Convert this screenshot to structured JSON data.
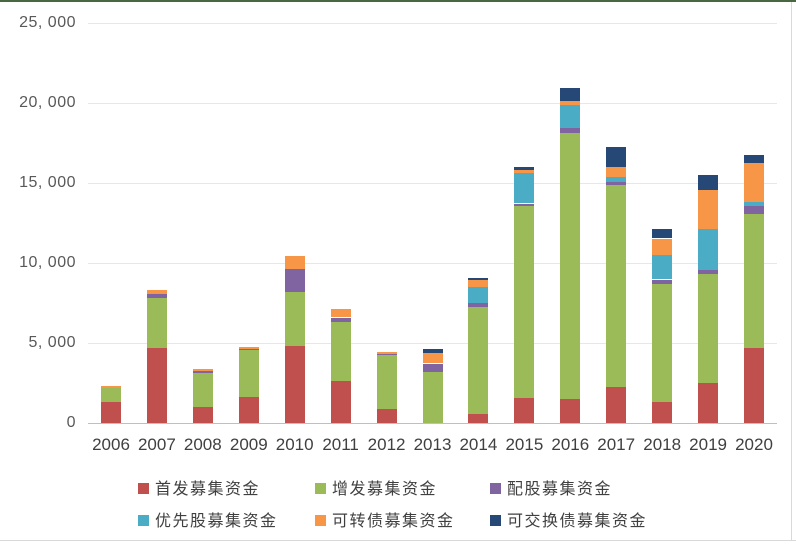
{
  "chart_data": {
    "type": "bar",
    "stacked": true,
    "title": "",
    "xlabel": "",
    "ylabel": "",
    "ylim": [
      0,
      25000
    ],
    "grid": true,
    "legend_position": "bottom",
    "categories": [
      "2006",
      "2007",
      "2008",
      "2009",
      "2010",
      "2011",
      "2012",
      "2013",
      "2014",
      "2015",
      "2016",
      "2017",
      "2018",
      "2019",
      "2020"
    ],
    "y_ticks": [
      {
        "label": "25, 000",
        "value": 25000
      },
      {
        "label": "20, 000",
        "value": 20000
      },
      {
        "label": "15, 000",
        "value": 15000
      },
      {
        "label": "10, 000",
        "value": 10000
      },
      {
        "label": "5, 000",
        "value": 5000
      },
      {
        "label": "0",
        "value": 0
      }
    ],
    "series": [
      {
        "key": "ipo",
        "name": "首发募集资金",
        "color": "#C0504D",
        "values": [
          1300,
          4680,
          1000,
          1650,
          4790,
          2600,
          900,
          0,
          550,
          1540,
          1500,
          2270,
          1330,
          2480,
          4670
        ]
      },
      {
        "key": "seo",
        "name": "增发募集资金",
        "color": "#9BBB59",
        "values": [
          900,
          3120,
          2150,
          2900,
          3410,
          3700,
          3330,
          3200,
          6720,
          12030,
          16650,
          12630,
          7390,
          6820,
          8390
        ]
      },
      {
        "key": "rights",
        "name": "配股募集资金",
        "color": "#8064A2",
        "values": [
          0,
          250,
          100,
          100,
          1440,
          290,
          80,
          520,
          210,
          150,
          310,
          170,
          250,
          250,
          520
        ]
      },
      {
        "key": "preferred",
        "name": "优先股募集资金",
        "color": "#4BACC6",
        "values": [
          0,
          0,
          0,
          0,
          0,
          0,
          0,
          0,
          1000,
          1920,
          1400,
          310,
          1520,
          2600,
          250
        ]
      },
      {
        "key": "convertible",
        "name": "可转债募集资金",
        "color": "#F79646",
        "values": [
          130,
          250,
          100,
          100,
          790,
          520,
          150,
          670,
          460,
          170,
          270,
          630,
          1040,
          2440,
          2400
        ]
      },
      {
        "key": "exchangeable",
        "name": "可交换债募集资金",
        "color": "#254876",
        "values": [
          0,
          0,
          0,
          0,
          0,
          0,
          0,
          230,
          150,
          210,
          830,
          1250,
          580,
          940,
          520
        ]
      }
    ]
  },
  "frame": {
    "top_border_color": "#4a6741",
    "bottom_border_color": "#d9d9d9",
    "right_border_color": "#d9d9d9",
    "gridline_color": "#e7e7e7",
    "axis_line_color": "#bfbfbf"
  }
}
